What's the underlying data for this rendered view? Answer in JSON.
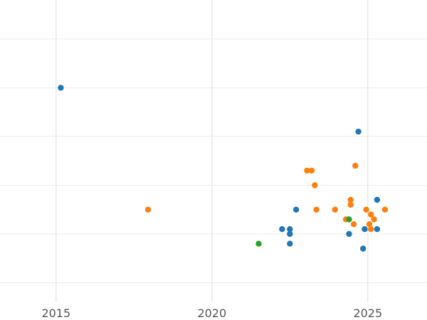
{
  "chart_data": {
    "type": "scatter",
    "title": "",
    "xlabel": "",
    "ylabel": "",
    "xlim": [
      2013.2,
      2026.9
    ],
    "ylim": [
      0.6,
      6.8
    ],
    "x_ticks": [
      2015,
      2020,
      2025
    ],
    "x_tick_labels": [
      "2015",
      "2020",
      "2025"
    ],
    "y_gridlines": [
      1,
      2,
      3,
      4,
      5,
      6
    ],
    "grid": true,
    "legend": "none",
    "series": [
      {
        "color": "#1f77b4",
        "points": [
          {
            "x": 2015.15,
            "y": 5.0
          },
          {
            "x": 2024.7,
            "y": 4.1
          },
          {
            "x": 2022.7,
            "y": 2.5
          },
          {
            "x": 2025.3,
            "y": 2.7
          },
          {
            "x": 2022.25,
            "y": 2.1
          },
          {
            "x": 2022.5,
            "y": 2.1
          },
          {
            "x": 2022.5,
            "y": 2.0
          },
          {
            "x": 2022.5,
            "y": 1.8
          },
          {
            "x": 2024.4,
            "y": 2.0
          },
          {
            "x": 2024.9,
            "y": 2.1
          },
          {
            "x": 2025.3,
            "y": 2.1
          },
          {
            "x": 2024.85,
            "y": 1.7
          }
        ]
      },
      {
        "color": "#ff7f0e",
        "points": [
          {
            "x": 2017.95,
            "y": 2.5
          },
          {
            "x": 2023.05,
            "y": 3.3
          },
          {
            "x": 2023.2,
            "y": 3.3
          },
          {
            "x": 2023.3,
            "y": 3.0
          },
          {
            "x": 2024.6,
            "y": 3.4
          },
          {
            "x": 2023.35,
            "y": 2.5
          },
          {
            "x": 2023.95,
            "y": 2.5
          },
          {
            "x": 2024.45,
            "y": 2.7
          },
          {
            "x": 2024.45,
            "y": 2.6
          },
          {
            "x": 2024.3,
            "y": 2.3
          },
          {
            "x": 2024.55,
            "y": 2.2
          },
          {
            "x": 2024.95,
            "y": 2.5
          },
          {
            "x": 2025.1,
            "y": 2.4
          },
          {
            "x": 2025.2,
            "y": 2.3
          },
          {
            "x": 2025.05,
            "y": 2.2
          },
          {
            "x": 2025.1,
            "y": 2.1
          },
          {
            "x": 2025.55,
            "y": 2.5
          }
        ]
      },
      {
        "color": "#2ca02c",
        "points": [
          {
            "x": 2021.5,
            "y": 1.8
          },
          {
            "x": 2024.4,
            "y": 2.3
          }
        ]
      }
    ]
  }
}
